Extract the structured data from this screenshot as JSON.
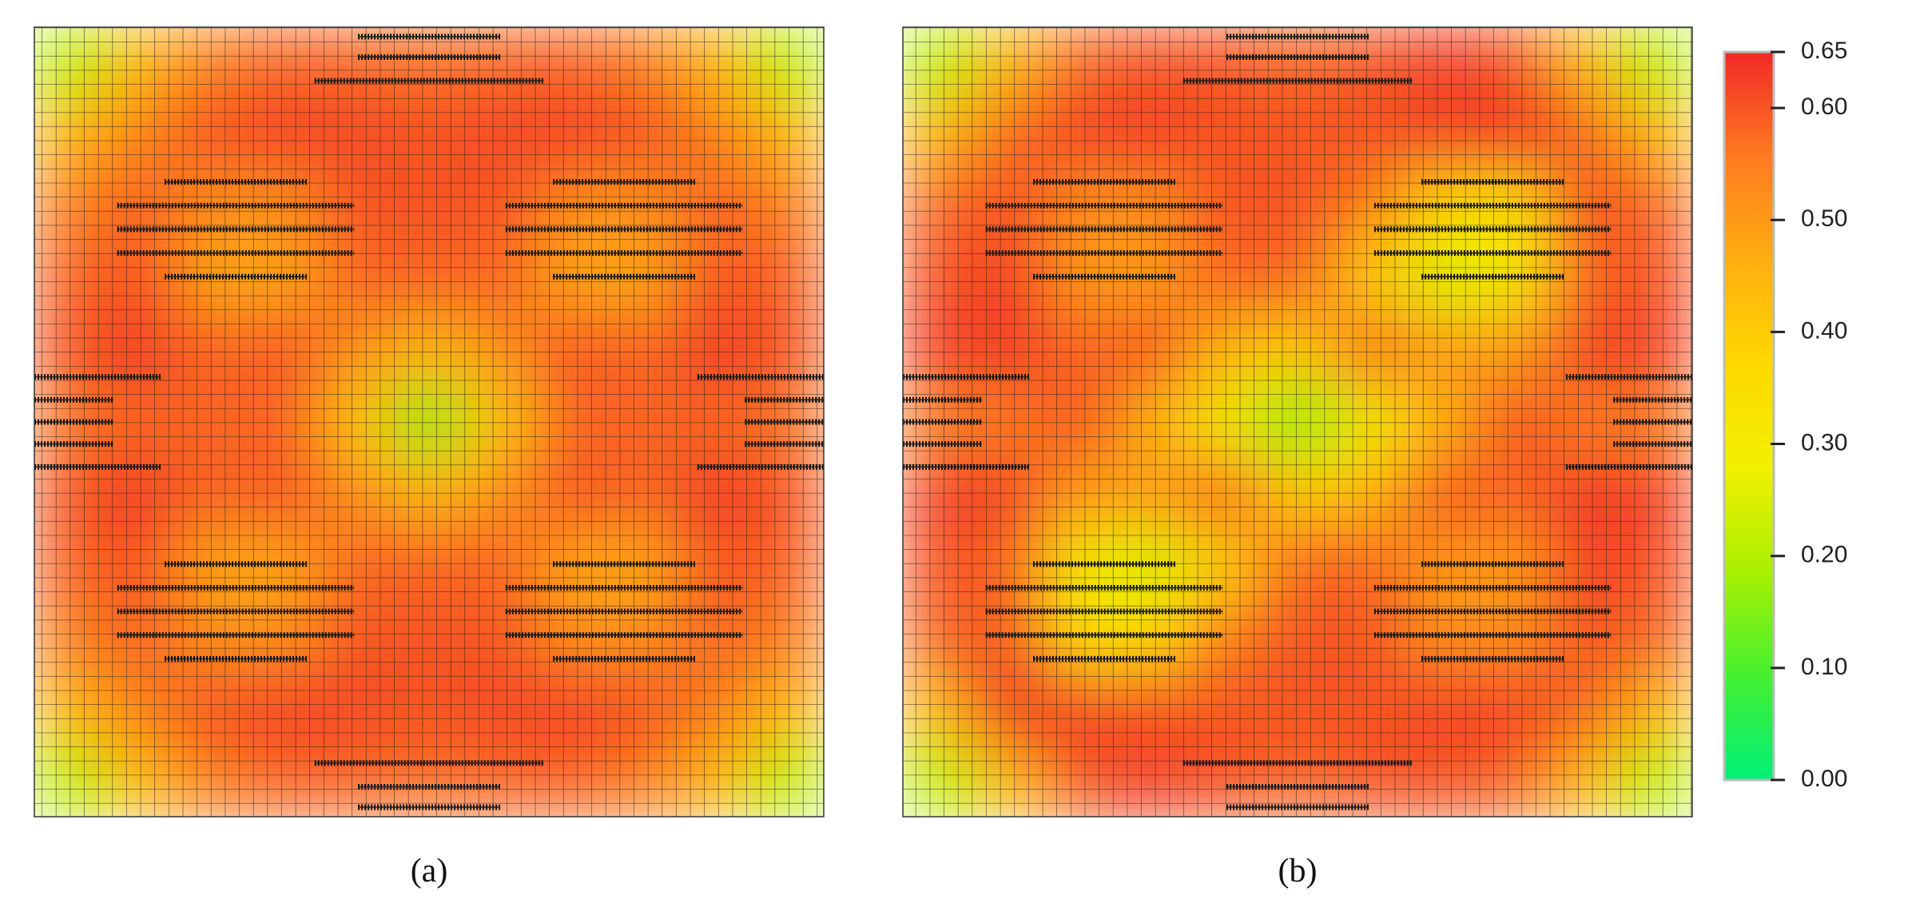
{
  "chart_data": {
    "type": "heatmap",
    "panels": [
      {
        "label": "(a)",
        "z": [
          [
            0.2,
            0.45,
            0.55,
            0.58,
            0.58,
            0.57,
            0.58,
            0.58,
            0.55,
            0.45,
            0.2
          ],
          [
            0.45,
            0.55,
            0.6,
            0.62,
            0.61,
            0.6,
            0.61,
            0.62,
            0.6,
            0.55,
            0.45
          ],
          [
            0.55,
            0.58,
            0.52,
            0.52,
            0.6,
            0.6,
            0.6,
            0.52,
            0.52,
            0.58,
            0.55
          ],
          [
            0.58,
            0.6,
            0.48,
            0.48,
            0.58,
            0.58,
            0.58,
            0.48,
            0.48,
            0.6,
            0.58
          ],
          [
            0.6,
            0.63,
            0.58,
            0.6,
            0.52,
            0.45,
            0.52,
            0.6,
            0.58,
            0.63,
            0.6
          ],
          [
            0.56,
            0.58,
            0.58,
            0.58,
            0.42,
            0.15,
            0.42,
            0.58,
            0.58,
            0.58,
            0.56
          ],
          [
            0.6,
            0.63,
            0.58,
            0.6,
            0.52,
            0.45,
            0.52,
            0.6,
            0.58,
            0.63,
            0.6
          ],
          [
            0.58,
            0.6,
            0.48,
            0.48,
            0.58,
            0.58,
            0.58,
            0.48,
            0.48,
            0.6,
            0.58
          ],
          [
            0.55,
            0.58,
            0.52,
            0.52,
            0.6,
            0.6,
            0.6,
            0.52,
            0.52,
            0.58,
            0.55
          ],
          [
            0.45,
            0.55,
            0.6,
            0.62,
            0.61,
            0.6,
            0.61,
            0.62,
            0.6,
            0.55,
            0.45
          ],
          [
            0.2,
            0.45,
            0.55,
            0.58,
            0.58,
            0.57,
            0.58,
            0.58,
            0.55,
            0.45,
            0.2
          ]
        ]
      },
      {
        "label": "(b)",
        "z": [
          [
            0.2,
            0.45,
            0.58,
            0.6,
            0.6,
            0.58,
            0.6,
            0.62,
            0.6,
            0.45,
            0.2
          ],
          [
            0.45,
            0.58,
            0.62,
            0.62,
            0.6,
            0.6,
            0.6,
            0.62,
            0.64,
            0.58,
            0.45
          ],
          [
            0.58,
            0.6,
            0.52,
            0.52,
            0.6,
            0.6,
            0.55,
            0.38,
            0.35,
            0.6,
            0.58
          ],
          [
            0.6,
            0.62,
            0.5,
            0.5,
            0.58,
            0.58,
            0.4,
            0.25,
            0.3,
            0.58,
            0.6
          ],
          [
            0.62,
            0.63,
            0.58,
            0.6,
            0.45,
            0.4,
            0.58,
            0.5,
            0.5,
            0.62,
            0.62
          ],
          [
            0.55,
            0.55,
            0.6,
            0.45,
            0.3,
            0.15,
            0.3,
            0.45,
            0.6,
            0.55,
            0.55
          ],
          [
            0.62,
            0.62,
            0.5,
            0.5,
            0.58,
            0.4,
            0.45,
            0.6,
            0.58,
            0.63,
            0.62
          ],
          [
            0.6,
            0.58,
            0.3,
            0.25,
            0.4,
            0.58,
            0.58,
            0.5,
            0.5,
            0.62,
            0.6
          ],
          [
            0.58,
            0.6,
            0.35,
            0.38,
            0.55,
            0.6,
            0.6,
            0.52,
            0.52,
            0.6,
            0.58
          ],
          [
            0.45,
            0.64,
            0.62,
            0.6,
            0.6,
            0.6,
            0.6,
            0.62,
            0.62,
            0.58,
            0.45
          ],
          [
            0.2,
            0.45,
            0.6,
            0.62,
            0.6,
            0.58,
            0.6,
            0.6,
            0.58,
            0.45,
            0.2
          ]
        ]
      }
    ],
    "colorbar": {
      "clim": [
        0,
        0.65
      ],
      "ticks": [
        {
          "value": 0,
          "label": "0.00"
        },
        {
          "value": 0.1,
          "label": "0.10"
        },
        {
          "value": 0.2,
          "label": "0.20"
        },
        {
          "value": 0.3,
          "label": "0.30"
        },
        {
          "value": 0.4,
          "label": "0.40"
        },
        {
          "value": 0.5,
          "label": "0.50"
        },
        {
          "value": 0.6,
          "label": "0.60"
        },
        0.65
      ],
      "colors": [
        "#00f078",
        "#44f030",
        "#a8f000",
        "#f0f000",
        "#ffd800",
        "#ffae10",
        "#ff7a20",
        "#f02828"
      ]
    }
  }
}
